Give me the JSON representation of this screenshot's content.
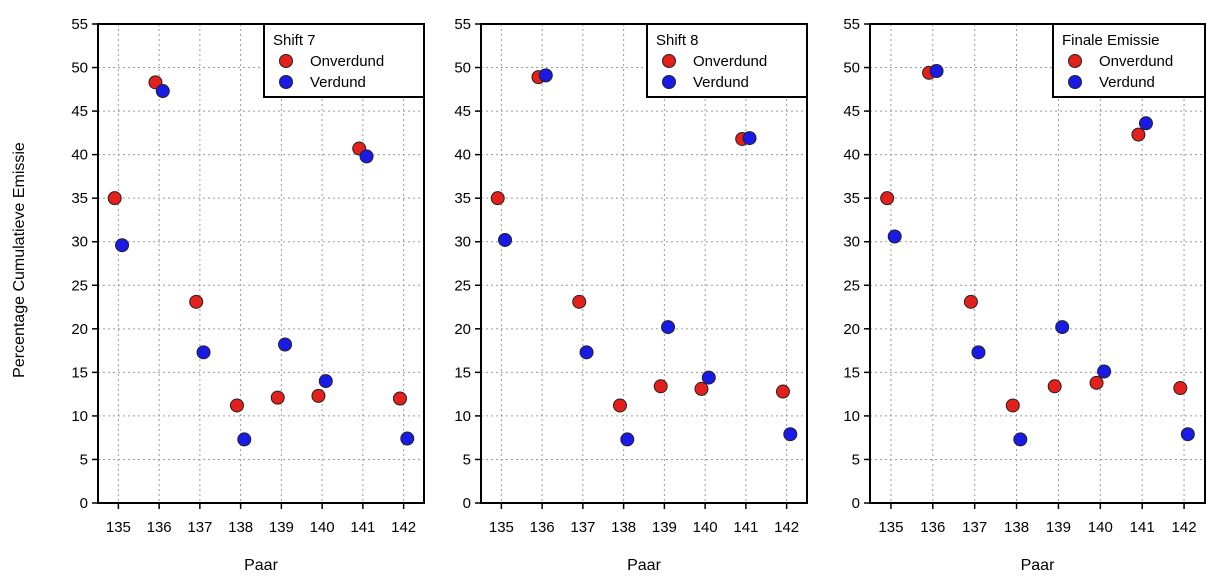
{
  "ylabel": "Percentage  Cumulatieve  Emissie",
  "colors": {
    "onverdund": "#e3201b",
    "verdund": "#1a1ae6"
  },
  "chart_data": [
    {
      "type": "scatter",
      "title": "",
      "xlabel": "Paar",
      "ylabel": "Percentage  Cumulatieve  Emissie",
      "categories": [
        "135",
        "136",
        "137",
        "138",
        "139",
        "140",
        "141",
        "142"
      ],
      "ylim": [
        0,
        55
      ],
      "yticks": [
        0,
        5,
        10,
        15,
        20,
        25,
        30,
        35,
        40,
        45,
        50,
        55
      ],
      "grid": true,
      "legend_title": "Shift 7",
      "legend_position": "top-right",
      "series": [
        {
          "name": "Onverdund",
          "color": "#e3201b",
          "values": [
            35.0,
            48.3,
            23.1,
            11.2,
            12.1,
            12.3,
            40.7,
            12.0
          ]
        },
        {
          "name": "Verdund",
          "color": "#1a1ae6",
          "values": [
            29.6,
            47.3,
            17.3,
            7.3,
            18.2,
            14.0,
            39.8,
            7.4
          ]
        }
      ]
    },
    {
      "type": "scatter",
      "title": "",
      "xlabel": "Paar",
      "categories": [
        "135",
        "136",
        "137",
        "138",
        "139",
        "140",
        "141",
        "142"
      ],
      "ylim": [
        0,
        55
      ],
      "yticks": [
        0,
        5,
        10,
        15,
        20,
        25,
        30,
        35,
        40,
        45,
        50,
        55
      ],
      "grid": true,
      "legend_title": "Shift 8",
      "legend_position": "top-right",
      "series": [
        {
          "name": "Onverdund",
          "color": "#e3201b",
          "values": [
            35.0,
            48.9,
            23.1,
            11.2,
            13.4,
            13.1,
            41.8,
            12.8
          ]
        },
        {
          "name": "Verdund",
          "color": "#1a1ae6",
          "values": [
            30.2,
            49.1,
            17.3,
            7.3,
            20.2,
            14.4,
            41.9,
            7.9
          ]
        }
      ]
    },
    {
      "type": "scatter",
      "title": "",
      "xlabel": "Paar",
      "categories": [
        "135",
        "136",
        "137",
        "138",
        "139",
        "140",
        "141",
        "142"
      ],
      "ylim": [
        0,
        55
      ],
      "yticks": [
        0,
        5,
        10,
        15,
        20,
        25,
        30,
        35,
        40,
        45,
        50,
        55
      ],
      "grid": true,
      "legend_title": "Finale Emissie",
      "legend_position": "top-right",
      "series": [
        {
          "name": "Onverdund",
          "color": "#e3201b",
          "values": [
            35.0,
            49.4,
            23.1,
            11.2,
            13.4,
            13.8,
            42.3,
            13.2
          ]
        },
        {
          "name": "Verdund",
          "color": "#1a1ae6",
          "values": [
            30.6,
            49.6,
            17.3,
            7.3,
            20.2,
            15.1,
            43.6,
            7.9
          ]
        }
      ]
    }
  ]
}
